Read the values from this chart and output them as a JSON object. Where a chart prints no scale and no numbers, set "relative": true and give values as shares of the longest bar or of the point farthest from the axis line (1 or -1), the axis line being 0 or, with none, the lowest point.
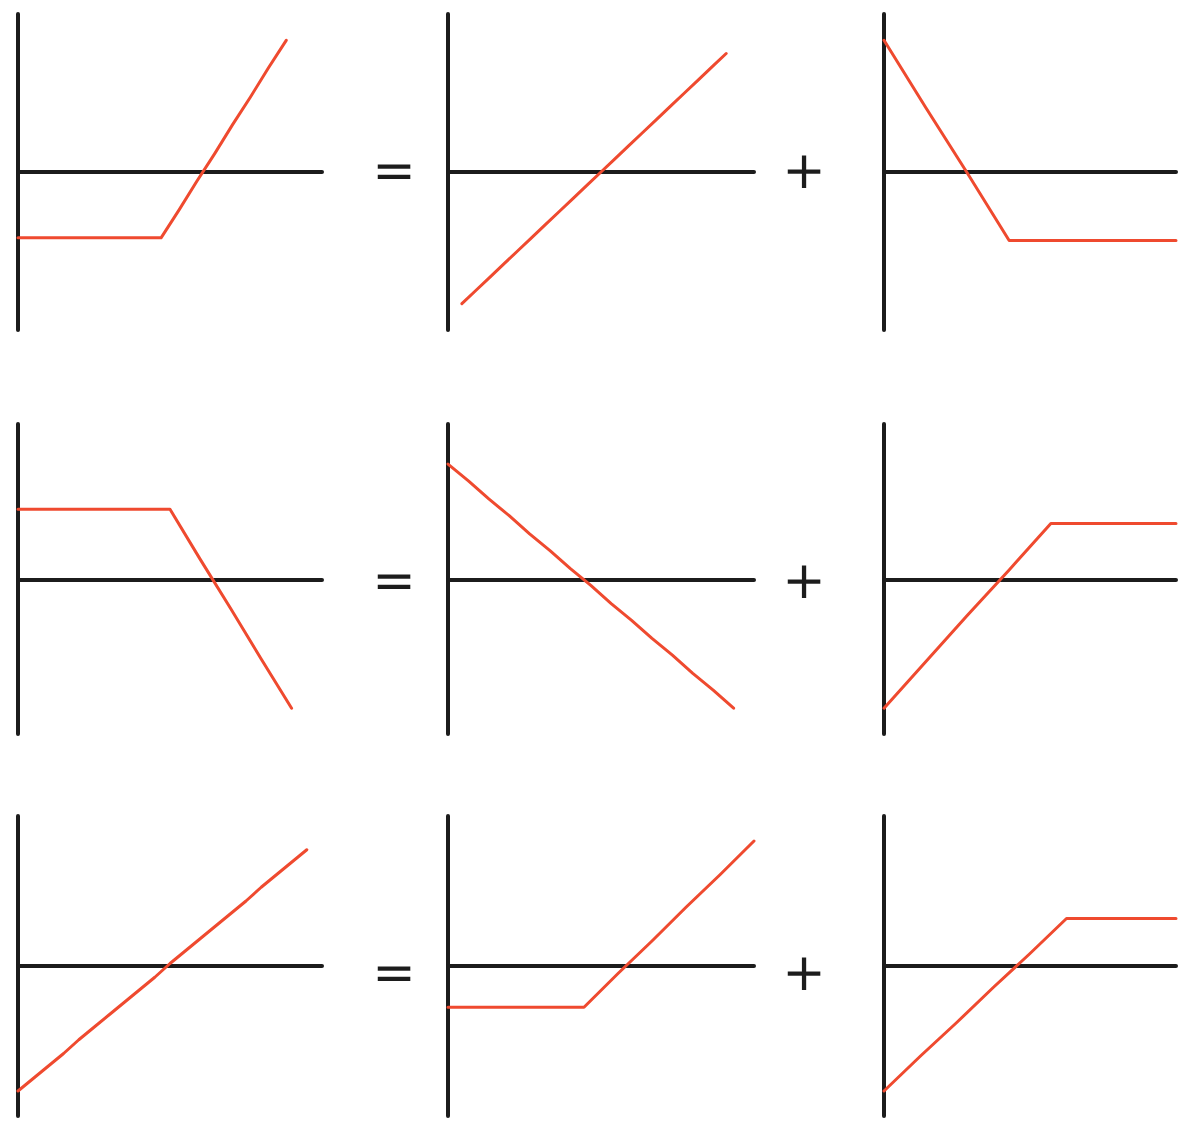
{
  "chart_data": [
    {
      "type": "line",
      "relative": true,
      "color": "#ef4a2f",
      "categories": [
        null,
        null,
        null,
        null,
        null,
        null,
        null,
        null,
        null,
        null,
        null,
        null,
        null,
        null,
        null,
        null,
        null,
        null
      ],
      "values": [
        -0.5,
        -0.5,
        -0.5,
        -0.5,
        -0.5,
        -0.5,
        -0.5,
        -0.5,
        -0.5,
        -0.29,
        -0.07,
        0.14,
        0.36,
        0.57,
        0.79,
        1,
        null,
        null
      ]
    },
    {
      "type": "line",
      "relative": true,
      "color": "#ef4a2f",
      "annotations": [
        "="
      ],
      "categories": [
        null,
        null,
        null,
        null,
        null,
        null,
        null,
        null,
        null,
        null,
        null,
        null,
        null,
        null,
        null,
        null,
        null,
        null,
        null,
        null,
        null,
        null,
        null
      ],
      "values": [
        null,
        -1,
        -0.9,
        -0.8,
        -0.7,
        -0.6,
        -0.5,
        -0.4,
        -0.3,
        -0.2,
        -0.1,
        0,
        0.1,
        0.2,
        0.3,
        0.4,
        0.5,
        0.6,
        0.7,
        0.8,
        0.9,
        null,
        null
      ]
    },
    {
      "type": "line",
      "relative": true,
      "color": "#ef4a2f",
      "annotations": [
        "+"
      ],
      "categories": [
        null,
        null,
        null,
        null,
        null,
        null,
        null,
        null
      ],
      "values": [
        1,
        0.49,
        -0.01,
        -0.52,
        -0.52,
        -0.52,
        -0.52,
        -0.52
      ]
    },
    {
      "type": "line",
      "relative": true,
      "color": "#ef4a2f",
      "categories": [
        null,
        null,
        null,
        null,
        null,
        null,
        null,
        null,
        null,
        null,
        null
      ],
      "values": [
        0.54,
        0.54,
        0.54,
        0.54,
        0.54,
        0.54,
        0.15,
        -0.23,
        -0.62,
        -1,
        null
      ]
    },
    {
      "type": "line",
      "relative": true,
      "color": "#ef4a2f",
      "annotations": [
        "="
      ],
      "categories": [
        null,
        null,
        null,
        null,
        null,
        null,
        null,
        null,
        null,
        null,
        null,
        null,
        null,
        null,
        null,
        null
      ],
      "values": [
        0.89,
        0.76,
        0.62,
        0.49,
        0.35,
        0.22,
        0.08,
        -0.05,
        -0.19,
        -0.32,
        -0.46,
        -0.59,
        -0.73,
        -0.86,
        -1,
        null
      ]
    },
    {
      "type": "line",
      "relative": true,
      "color": "#ef4a2f",
      "annotations": [
        "+"
      ],
      "categories": [
        null,
        null,
        null,
        null,
        null,
        null,
        null,
        null
      ],
      "values": [
        -1,
        -0.64,
        -0.28,
        0.07,
        0.43,
        0.43,
        0.43,
        0.43
      ]
    },
    {
      "type": "line",
      "relative": true,
      "color": "#ef4a2f",
      "categories": [
        null,
        null,
        null,
        null,
        null,
        null,
        null,
        null,
        null,
        null,
        null,
        null,
        null,
        null,
        null,
        null,
        null,
        null,
        null,
        null,
        null
      ],
      "values": [
        -1,
        -0.9,
        -0.8,
        -0.7,
        -0.59,
        -0.49,
        -0.39,
        -0.29,
        -0.19,
        -0.09,
        0.02,
        0.12,
        0.22,
        0.32,
        0.42,
        0.52,
        0.63,
        0.73,
        0.83,
        0.93,
        null
      ]
    },
    {
      "type": "line",
      "relative": true,
      "color": "#ef4a2f",
      "annotations": [
        "="
      ],
      "categories": [
        null,
        null,
        null,
        null,
        null,
        null,
        null,
        null,
        null,
        null
      ],
      "values": [
        -0.33,
        -0.33,
        -0.33,
        -0.33,
        -0.33,
        -0.06,
        0.2,
        0.47,
        0.73,
        1
      ]
    },
    {
      "type": "line",
      "relative": true,
      "color": "#ef4a2f",
      "annotations": [
        "+"
      ],
      "categories": [
        null,
        null,
        null,
        null,
        null,
        null,
        null,
        null,
        null
      ],
      "values": [
        -1,
        -0.72,
        -0.45,
        -0.17,
        0.1,
        0.38,
        0.38,
        0.38,
        0.38
      ]
    }
  ]
}
